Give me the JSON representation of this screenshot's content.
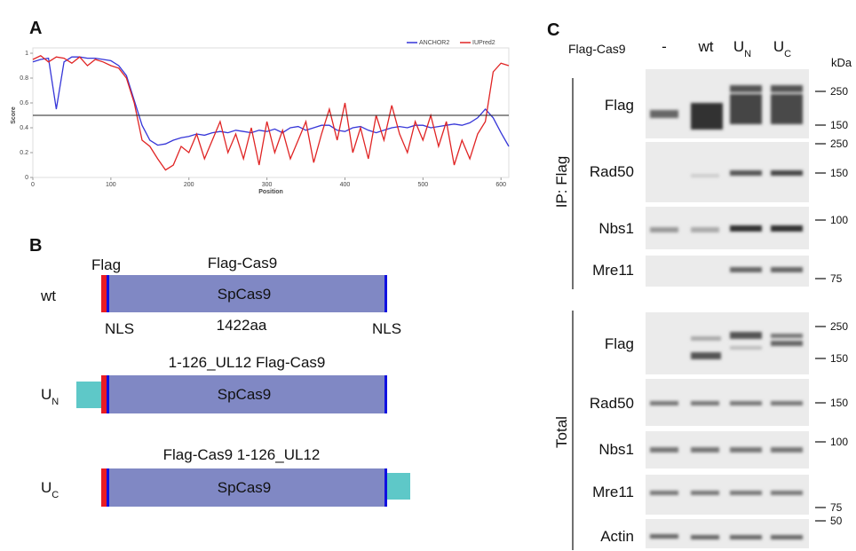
{
  "chart_data": {
    "type": "line",
    "panel_label": "A",
    "x_label": "Position",
    "y_label": "Score",
    "xlim": [
      0,
      610
    ],
    "ylim": [
      0,
      1
    ],
    "xticks": [
      0,
      100,
      200,
      300,
      400,
      500,
      600
    ],
    "yticks": [
      0,
      0.2,
      0.4,
      0.6,
      0.8,
      1
    ],
    "threshold": 0.5,
    "legend": "top-right",
    "x": [
      0,
      10,
      20,
      30,
      40,
      50,
      60,
      70,
      80,
      90,
      100,
      110,
      120,
      130,
      140,
      150,
      160,
      170,
      180,
      190,
      200,
      210,
      220,
      230,
      240,
      250,
      260,
      270,
      280,
      290,
      300,
      310,
      320,
      330,
      340,
      350,
      360,
      370,
      380,
      390,
      400,
      410,
      420,
      430,
      440,
      450,
      460,
      470,
      480,
      490,
      500,
      510,
      520,
      530,
      540,
      550,
      560,
      570,
      580,
      590,
      600,
      610
    ],
    "series": [
      {
        "name": "ANCHOR2",
        "color": "#3636d8",
        "values": [
          0.93,
          0.95,
          0.96,
          0.55,
          0.93,
          0.97,
          0.97,
          0.96,
          0.96,
          0.95,
          0.94,
          0.9,
          0.82,
          0.62,
          0.42,
          0.3,
          0.26,
          0.27,
          0.3,
          0.32,
          0.33,
          0.35,
          0.34,
          0.36,
          0.37,
          0.36,
          0.38,
          0.37,
          0.36,
          0.38,
          0.37,
          0.39,
          0.36,
          0.4,
          0.41,
          0.38,
          0.4,
          0.42,
          0.42,
          0.38,
          0.37,
          0.4,
          0.41,
          0.38,
          0.36,
          0.38,
          0.4,
          0.41,
          0.4,
          0.42,
          0.42,
          0.4,
          0.41,
          0.42,
          0.43,
          0.42,
          0.44,
          0.48,
          0.55,
          0.48,
          0.36,
          0.25
        ]
      },
      {
        "name": "IUPred2",
        "color": "#e02424",
        "values": [
          0.95,
          0.98,
          0.93,
          0.97,
          0.96,
          0.92,
          0.97,
          0.9,
          0.95,
          0.93,
          0.9,
          0.88,
          0.8,
          0.6,
          0.3,
          0.25,
          0.15,
          0.06,
          0.1,
          0.25,
          0.2,
          0.35,
          0.15,
          0.3,
          0.45,
          0.2,
          0.35,
          0.15,
          0.4,
          0.1,
          0.45,
          0.2,
          0.38,
          0.15,
          0.3,
          0.45,
          0.12,
          0.35,
          0.55,
          0.3,
          0.6,
          0.2,
          0.4,
          0.15,
          0.5,
          0.3,
          0.58,
          0.35,
          0.2,
          0.45,
          0.3,
          0.5,
          0.25,
          0.45,
          0.1,
          0.3,
          0.15,
          0.35,
          0.45,
          0.85,
          0.92,
          0.9
        ]
      }
    ]
  },
  "diagram": {
    "panel_label": "B",
    "constructs": [
      {
        "name": "wt",
        "title": "Flag-Cas9",
        "tag": "Flag",
        "domain": "SpCas9",
        "nls_left": "NLS",
        "length": "1422aa",
        "nls_right": "NLS"
      },
      {
        "name": "U",
        "sub": "N",
        "title": "1-126_UL12 Flag-Cas9",
        "domain": "SpCas9"
      },
      {
        "name": "U",
        "sub": "C",
        "title": "Flag-Cas9 1-126_UL12",
        "domain": "SpCas9"
      }
    ]
  },
  "blot": {
    "panel_label": "C",
    "row_label": "Flag-Cas9",
    "unit": "kDa",
    "lanes": [
      {
        "name": "-"
      },
      {
        "name": "wt"
      },
      {
        "name": "U",
        "sub": "N"
      },
      {
        "name": "U",
        "sub": "C"
      }
    ],
    "groups": [
      {
        "label": "IP: Flag",
        "blots": [
          "Flag",
          "Rad50",
          "Nbs1",
          "Mre11"
        ],
        "markers": [
          250,
          150,
          250,
          150,
          100,
          75
        ]
      },
      {
        "label": "Total",
        "blots": [
          "Flag",
          "Rad50",
          "Nbs1",
          "Mre11",
          "Actin"
        ],
        "markers": [
          250,
          150,
          150,
          100,
          75,
          50
        ]
      }
    ]
  }
}
